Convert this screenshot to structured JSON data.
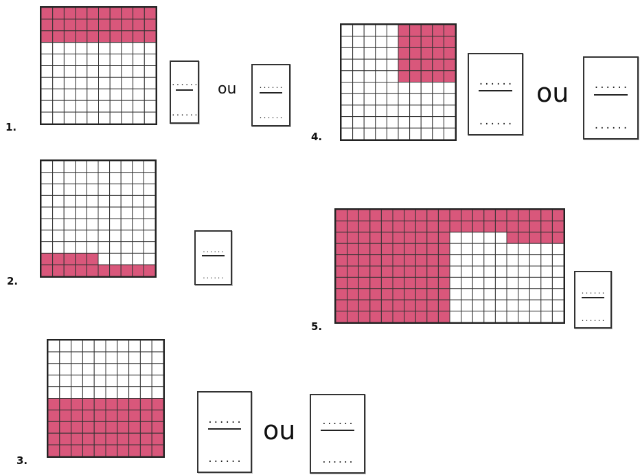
{
  "colors": {
    "shade": "#d9577b",
    "grid_line": "#333333"
  },
  "blank_placeholder": "......",
  "or_word": "ou",
  "problems": [
    {
      "number": "1.",
      "cols": 10,
      "rows": 10,
      "shaded_cells": 30,
      "blanks": 2
    },
    {
      "number": "2.",
      "cols": 10,
      "rows": 10,
      "shaded_cells": 15,
      "blanks": 1
    },
    {
      "number": "3.",
      "cols": 10,
      "rows": 10,
      "shaded_cells": 50,
      "blanks": 2
    },
    {
      "number": "4.",
      "cols": 10,
      "rows": 10,
      "shaded_cells": 25,
      "blanks": 2
    },
    {
      "number": "5.",
      "cols": 20,
      "rows": 10,
      "shaded_cells": 145,
      "blanks": 1
    }
  ]
}
